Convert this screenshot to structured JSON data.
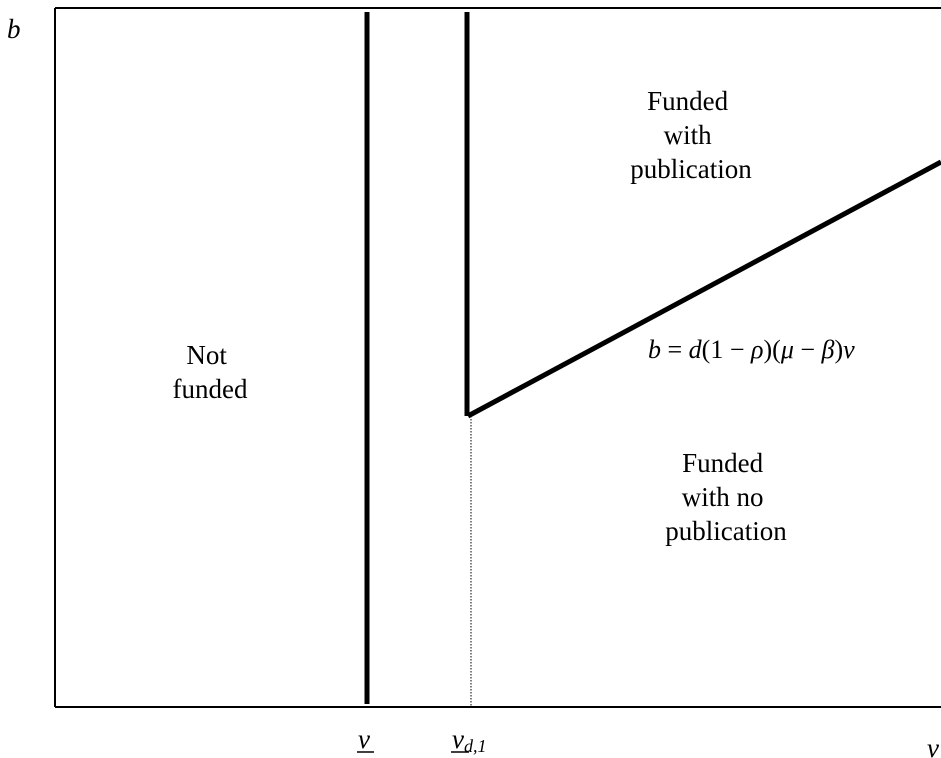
{
  "axes": {
    "y_label": "b",
    "x_label": "v",
    "tick_v_lower": "v",
    "tick_v_d1_main": "v",
    "tick_v_d1_sub": "d,1"
  },
  "regions": {
    "not_funded": [
      "Not",
      "funded"
    ],
    "funded_with_publication": [
      "Funded",
      "with",
      "publication"
    ],
    "funded_no_publication": [
      "Funded",
      "with no",
      "publication"
    ]
  },
  "boundary_equation": {
    "lhs": "b",
    "eq": " = ",
    "d": "d",
    "one_minus_open": "(1 − ",
    "rho": "ρ",
    "close_open": ")(",
    "mu": "μ",
    "minus": " − ",
    "beta": "β",
    "close": ")",
    "v": "v"
  },
  "colors": {
    "lines": "#000000",
    "background": "#ffffff"
  }
}
